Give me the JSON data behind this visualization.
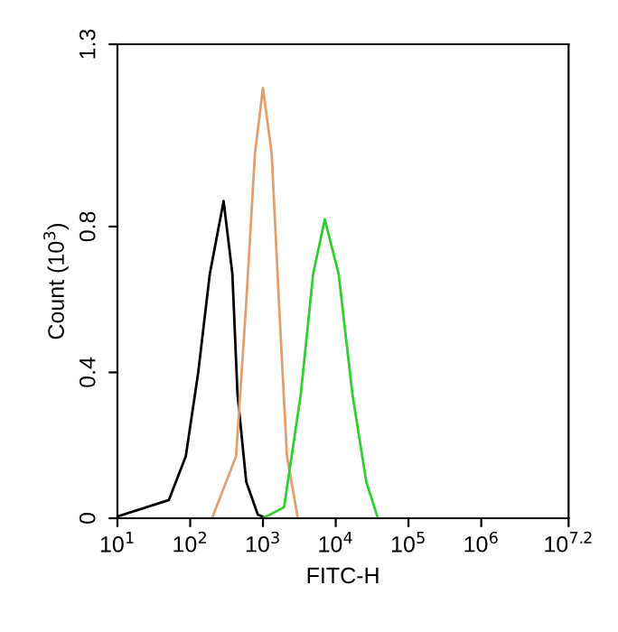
{
  "chart_data": {
    "type": "line",
    "xlabel": "FITC-H",
    "ylabel": "Count (10$^{3}$)",
    "log": "x",
    "grid": false,
    "marker": "none",
    "line_style": "solid",
    "xlim": [
      10,
      15848932
    ],
    "xticks": [
      {
        "value": 10,
        "label": "10$^{1}$"
      },
      {
        "value": 100,
        "label": "10$^{2}$"
      },
      {
        "value": 1000,
        "label": "10$^{3}$"
      },
      {
        "value": 10000,
        "label": "10$^{4}$"
      },
      {
        "value": 100000,
        "label": "10$^{5}$"
      },
      {
        "value": 1000000,
        "label": "10$^{6}$"
      },
      {
        "value": 15848932,
        "label": "10$^{7.2}$"
      }
    ],
    "ylim": [
      0,
      1.3
    ],
    "yticks": [
      0,
      0.4,
      0.8,
      1.3
    ],
    "series": [
      {
        "color": "#000000",
        "x": [
          10,
          51,
          87,
          129,
          186,
          288,
          380,
          447,
          589,
          851,
          1122
        ],
        "values": [
          0.005,
          0.05,
          0.17,
          0.4,
          0.67,
          0.87,
          0.67,
          0.34,
          0.1,
          0.01,
          0
        ]
      },
      {
        "color": "#e0a070",
        "x": [
          200,
          427,
          589,
          776,
          1000,
          1318,
          1660,
          2138,
          3020
        ],
        "values": [
          0,
          0.17,
          0.59,
          1.0,
          1.18,
          1.0,
          0.59,
          0.17,
          0
        ]
      },
      {
        "color": "#33cc33",
        "x": [
          1000,
          1950,
          3311,
          4898,
          7079,
          10965,
          16982,
          26303,
          38019
        ],
        "values": [
          0,
          0.03,
          0.34,
          0.67,
          0.82,
          0.67,
          0.34,
          0.1,
          0
        ]
      }
    ]
  }
}
